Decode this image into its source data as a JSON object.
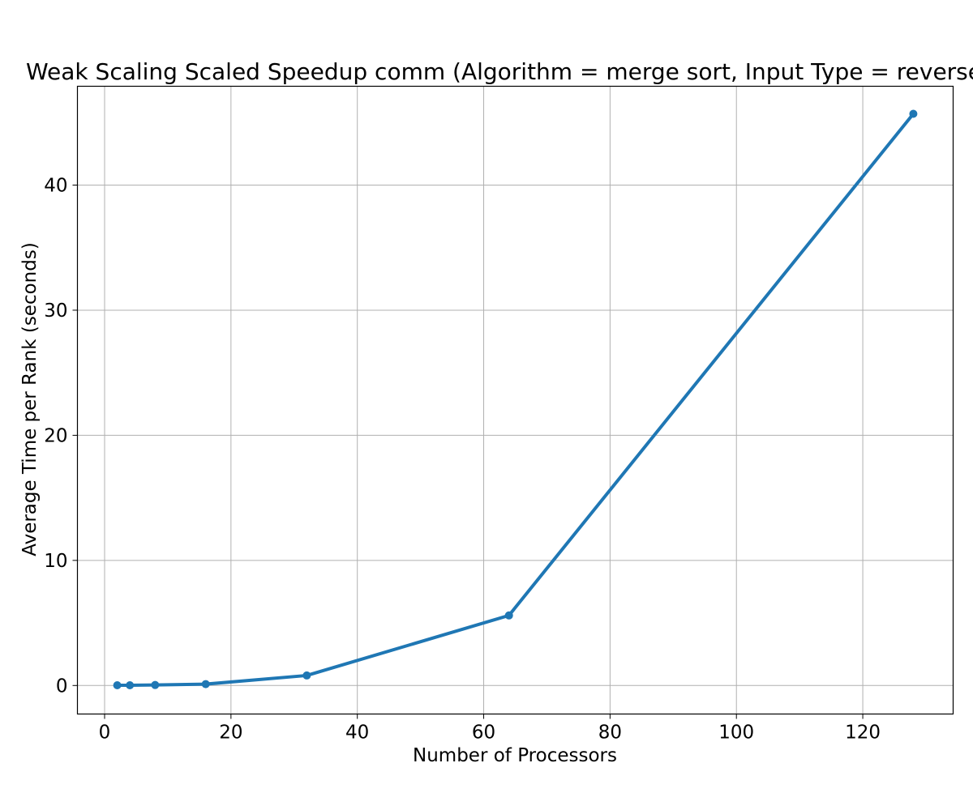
{
  "chart_data": {
    "type": "line",
    "title": "Weak Scaling Scaled Speedup comm (Algorithm = merge sort, Input Type = reverse",
    "xlabel": "Number of Processors",
    "ylabel": "Average Time per Rank (seconds)",
    "xlim": [
      -4.3,
      134.3
    ],
    "ylim": [
      -2.28,
      47.9
    ],
    "xticks": [
      0,
      20,
      40,
      60,
      80,
      100,
      120
    ],
    "yticks": [
      0,
      10,
      20,
      30,
      40
    ],
    "grid": true,
    "series": [
      {
        "color": "#1f77b4",
        "x": [
          2,
          4,
          8,
          16,
          32,
          64,
          128
        ],
        "y": [
          0.02,
          0.02,
          0.04,
          0.11,
          0.8,
          5.6,
          45.7
        ]
      }
    ]
  }
}
